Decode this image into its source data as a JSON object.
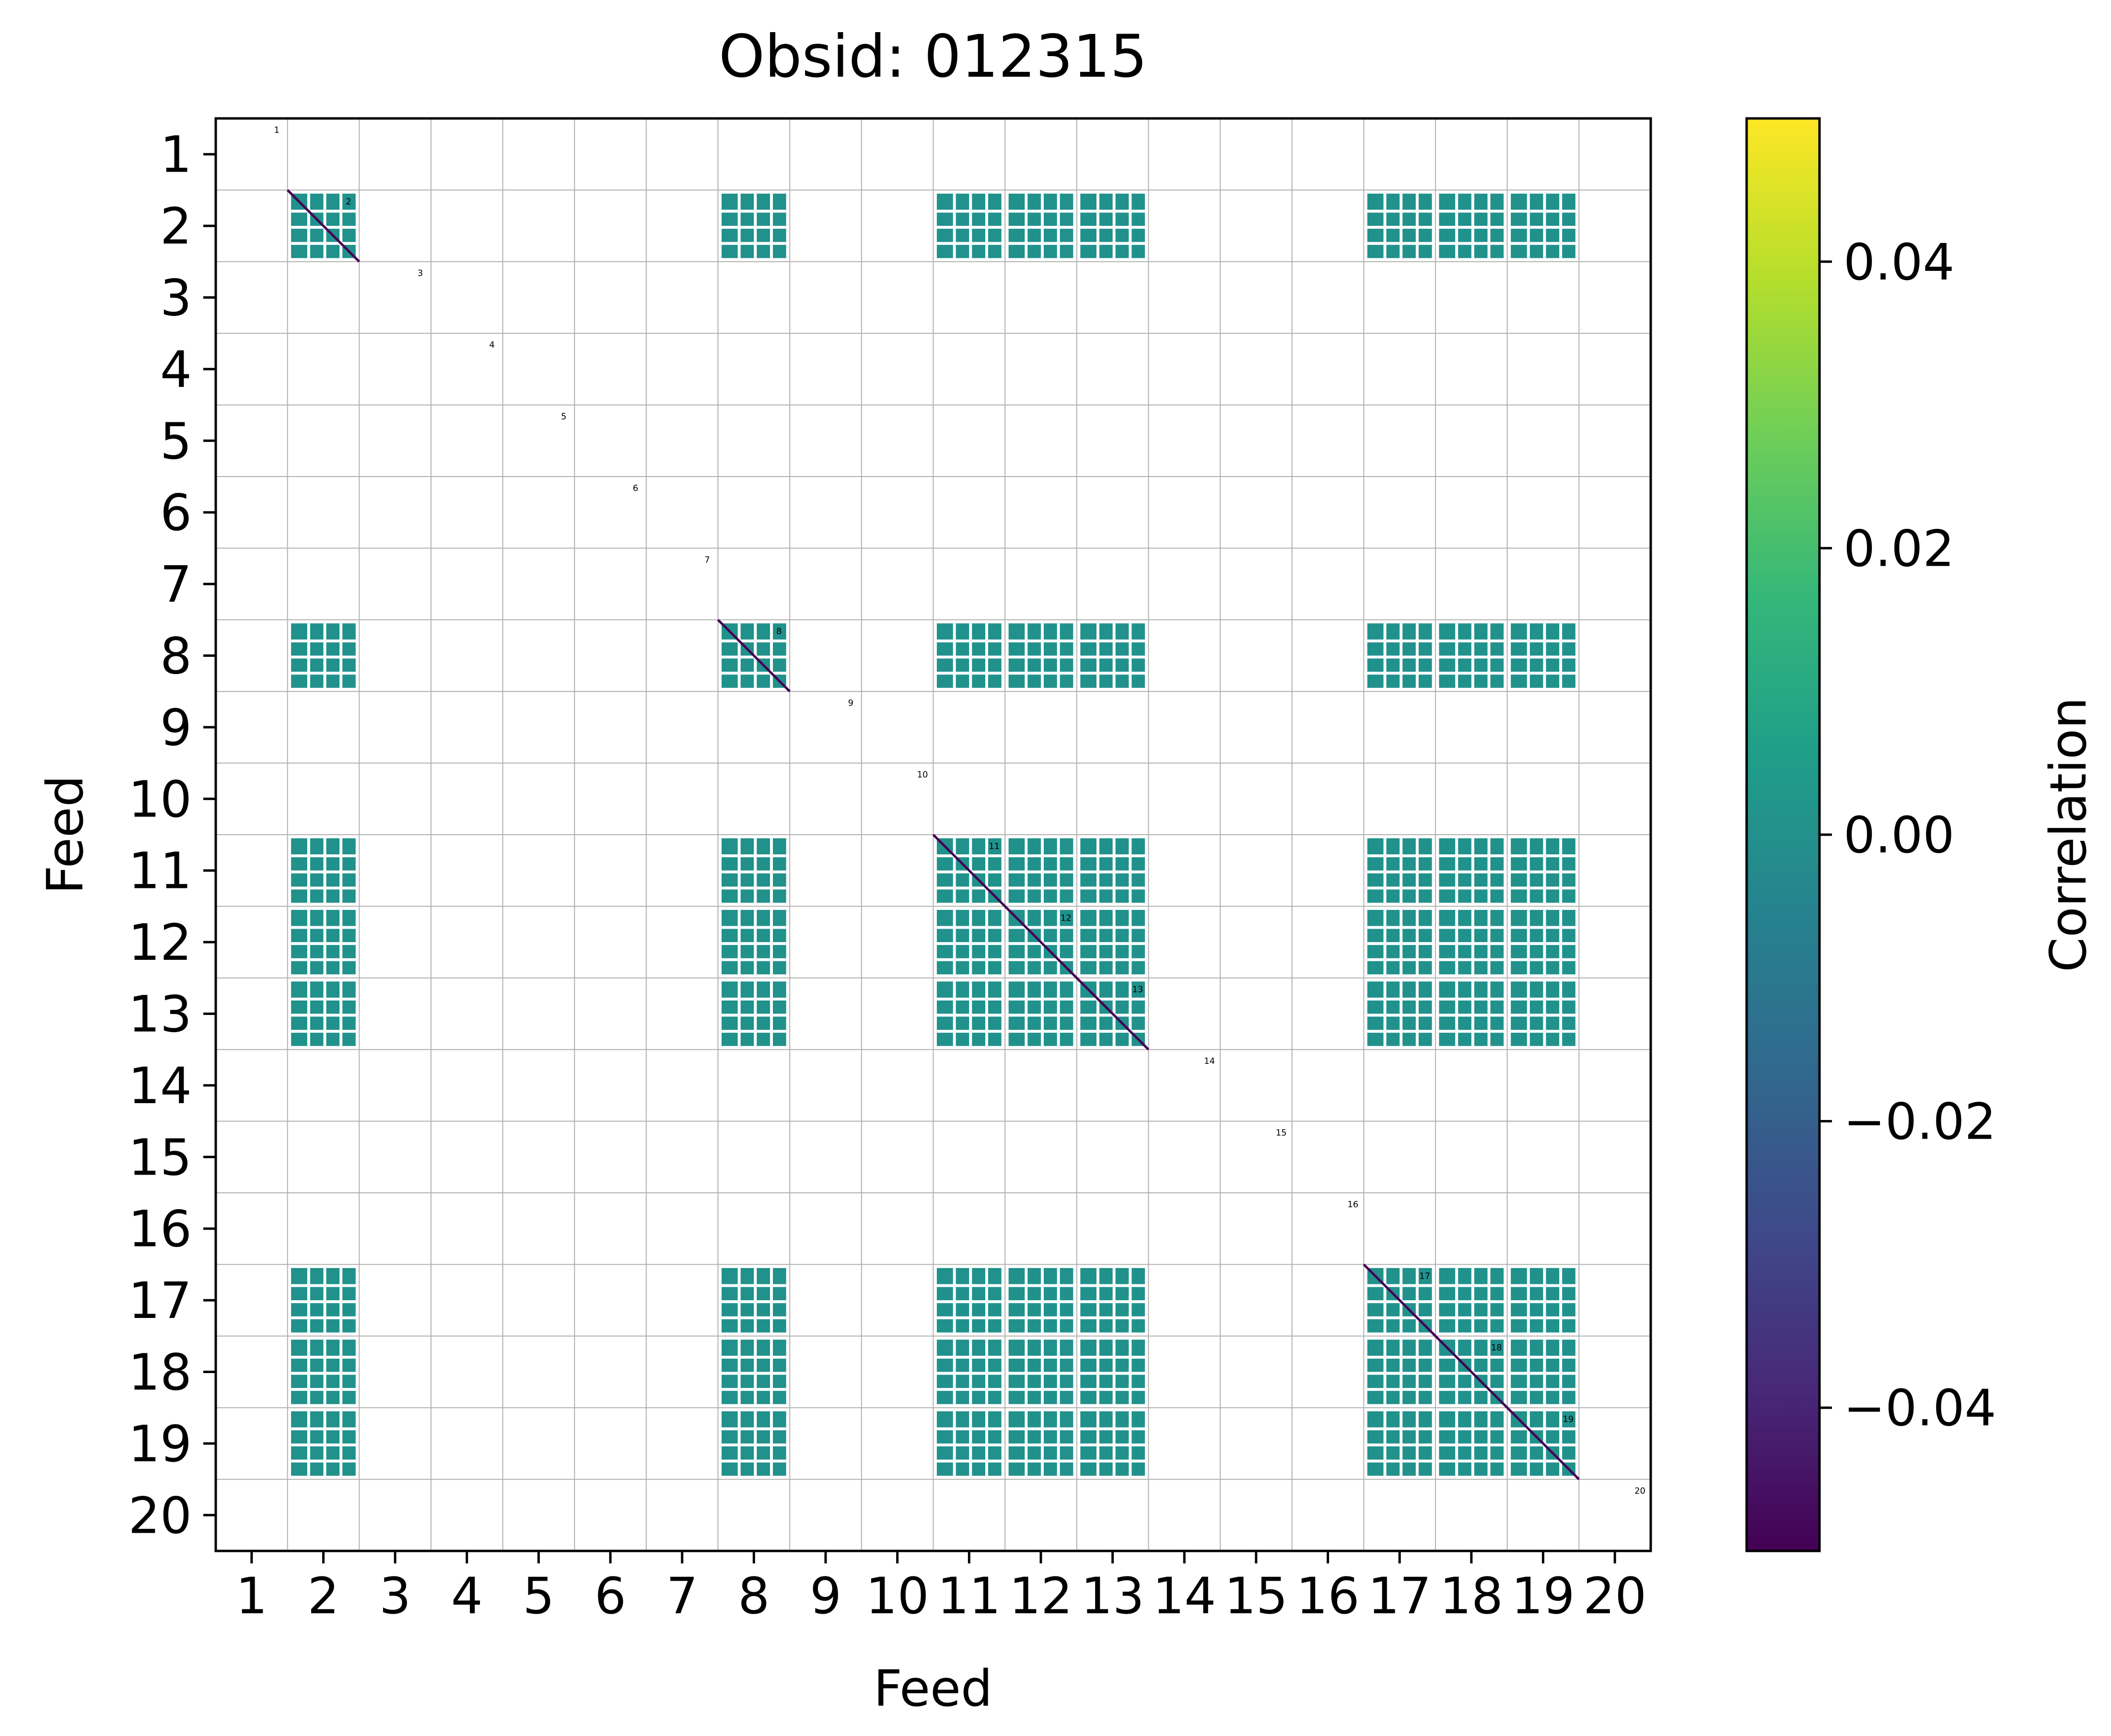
{
  "chart_data": {
    "type": "heatmap",
    "title": "Obsid: 012315",
    "xlabel": "Feed",
    "ylabel": "Feed",
    "feeds": [
      "1",
      "2",
      "3",
      "4",
      "5",
      "6",
      "7",
      "8",
      "9",
      "10",
      "11",
      "12",
      "13",
      "14",
      "15",
      "16",
      "17",
      "18",
      "19",
      "20"
    ],
    "active_feeds": [
      2,
      8,
      11,
      12,
      13,
      17,
      18,
      19
    ],
    "diagonal_labels": [
      "1",
      "2",
      "3",
      "4",
      "5",
      "6",
      "7",
      "8",
      "9",
      "10",
      "11",
      "12",
      "13",
      "14",
      "15",
      "16",
      "17",
      "18",
      "19",
      "20"
    ],
    "colormap": "viridis",
    "dominant_value": 0.0,
    "colorbar": {
      "label": "Correlation",
      "vmin": -0.05,
      "vmax": 0.05,
      "ticks": [
        -0.04,
        -0.02,
        0.0,
        0.02,
        0.04
      ],
      "tick_labels": [
        "−0.04",
        "−0.02",
        "0.00",
        "0.02",
        "0.04"
      ]
    },
    "grid": true
  },
  "colors": {
    "cell": "#21918c",
    "diagonal": "#440154",
    "grid": "#b0b0b0",
    "viridis": [
      "#440154",
      "#482878",
      "#3e4989",
      "#31688e",
      "#26828e",
      "#1f9e89",
      "#35b779",
      "#6ece58",
      "#b5de2b",
      "#fde725"
    ]
  }
}
